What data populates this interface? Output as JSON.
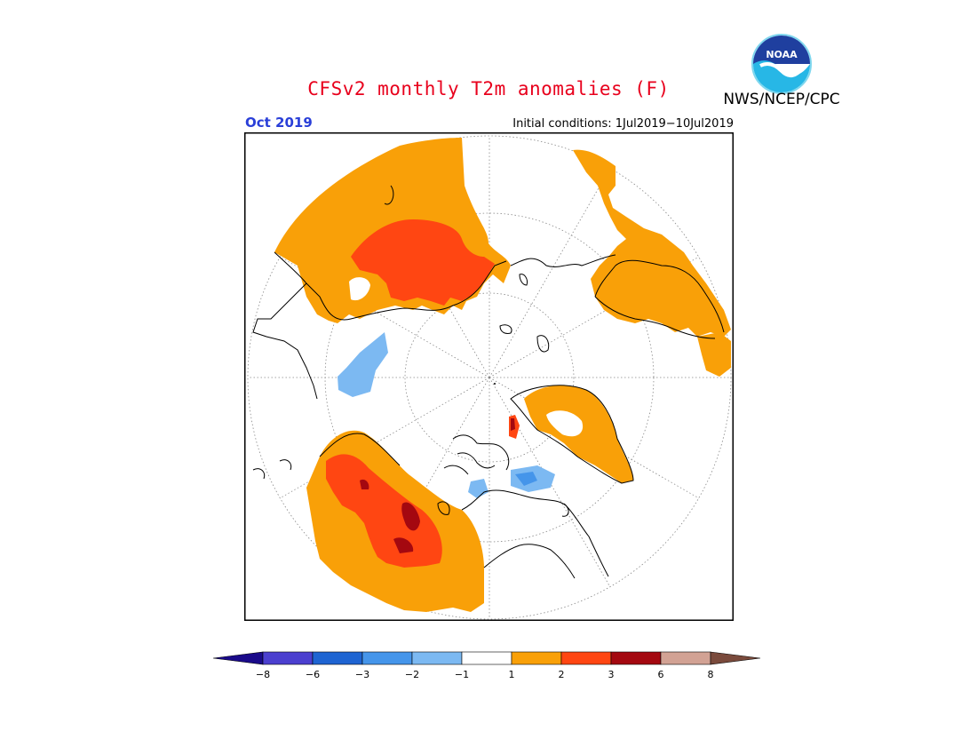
{
  "header": {
    "title": "CFSv2 monthly T2m anomalies (F)",
    "agency": "NWS/NCEP/CPC",
    "logo_text": "NOAA",
    "month": "Oct 2019",
    "initial_conditions": "Initial conditions: 1Jul2019−10Jul2019"
  },
  "colorbar": {
    "labels": [
      "−8",
      "−6",
      "−3",
      "−2",
      "−1",
      "1",
      "2",
      "3",
      "6",
      "8"
    ],
    "colors": [
      "#1a0a8a",
      "#4b3fcf",
      "#1e64d2",
      "#4595ea",
      "#7cb9f2",
      "#ffffff",
      "#f9a008",
      "#ff4612",
      "#a40810",
      "#d2a294",
      "#7a4a3c"
    ]
  },
  "legend_colors": {
    "warm_1_2": "#f9a008",
    "warm_2_3": "#ff4612",
    "warm_3_6": "#a40810",
    "cool_1_2": "#7cb9f2",
    "cool_2_3": "#4595ea"
  },
  "icons": {
    "logo": "noaa-logo"
  }
}
